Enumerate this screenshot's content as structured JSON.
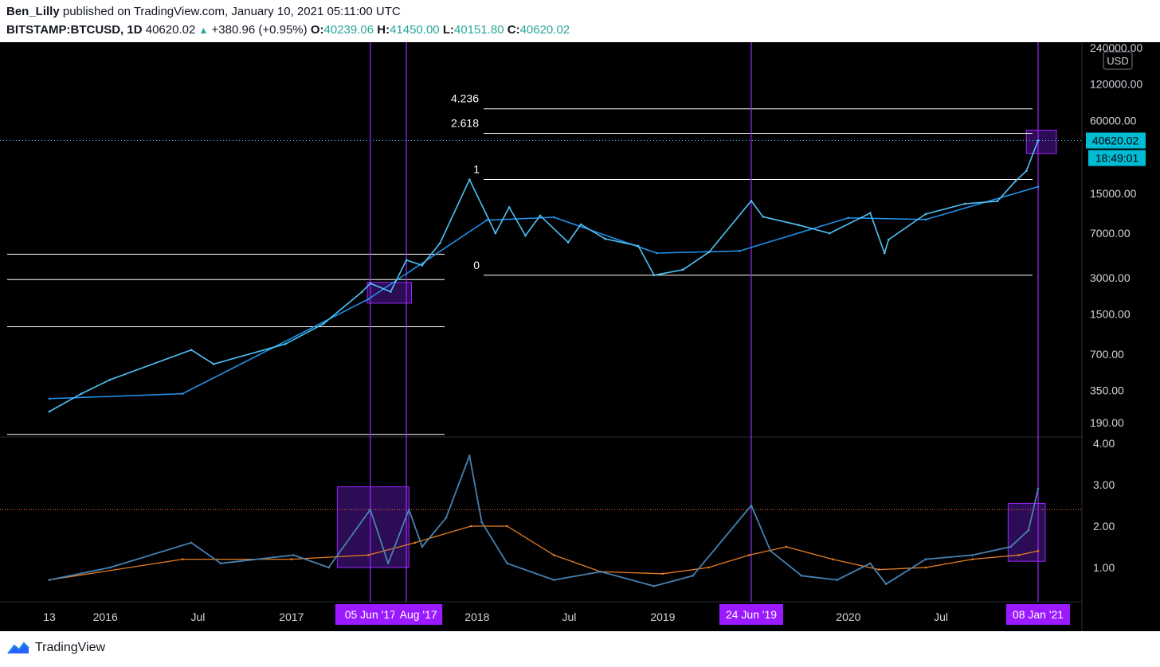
{
  "header": {
    "author": "Ben_Lilly",
    "published_text": "published on TradingView.com, January 10, 2021 05:11:00 UTC",
    "symbol": "BITSTAMP:BTCUSD, 1D",
    "last": "40620.02",
    "change": "+380.96 (+0.95%)",
    "o_label": "O:",
    "o": "40239.06",
    "h_label": "H:",
    "h": "41450.00",
    "l_label": "L:",
    "l": "40151.80",
    "c_label": "C:",
    "c": "40620.02"
  },
  "colors": {
    "price": "#4fc3f7",
    "ma": "#2196f3",
    "oscillator": "#4682b4",
    "osc_ma": "#e67e22",
    "vline": "#9c27ff",
    "box": "#4a148c",
    "level": "#ffffff",
    "tag": "#9c1aff",
    "axis_text": "#d1d4dc"
  },
  "chart_data": [
    {
      "type": "line",
      "title": "",
      "scale": "log",
      "currency": "USD",
      "y_ticks": [
        "240000.00",
        "120000.00",
        "60000.00",
        "15000.00",
        "7000.00",
        "3000.00",
        "1500.00",
        "700.00",
        "350.00",
        "190.00"
      ],
      "price_label": "40620.02",
      "countdown_label": "18:49:01",
      "x_ticks": [
        "13",
        "2016",
        "Jul",
        "2017",
        "Jul",
        "2018",
        "Jul",
        "2019",
        "Jul",
        "2020",
        "Jul"
      ],
      "date_tags": [
        "05 Jun '17",
        "Aug '17",
        "24 Jun '19",
        "08 Jan '21"
      ],
      "fib_labels": [
        "4.236",
        "2.618",
        "1",
        "0"
      ],
      "fib_values": [
        75000,
        47000,
        19500,
        3150
      ],
      "h_levels": [
        4700,
        2900,
        1180,
        152
      ],
      "series": [
        {
          "x": [
            "2015-09-13",
            "2015-11-15",
            "2016-01-10",
            "2016-06-18",
            "2016-08-01",
            "2016-12-20",
            "2017-03-05",
            "2017-05-20",
            "2017-06-05",
            "2017-07-15",
            "2017-08-15",
            "2017-09-15",
            "2017-10-20",
            "2017-12-17",
            "2018-02-06",
            "2018-03-05",
            "2018-04-06",
            "2018-05-05",
            "2018-06-29",
            "2018-07-24",
            "2018-09-10",
            "2018-11-14",
            "2018-12-15",
            "2019-02-10",
            "2019-04-02",
            "2019-06-24",
            "2019-07-17",
            "2019-09-25",
            "2019-11-25",
            "2020-02-13",
            "2020-03-12",
            "2020-03-20",
            "2020-06-01",
            "2020-08-17",
            "2020-10-20",
            "2020-11-25",
            "2020-12-16",
            "2021-01-08"
          ],
          "y": [
            235,
            330,
            430,
            760,
            580,
            850,
            1250,
            2300,
            2700,
            2300,
            4200,
            3800,
            5800,
            19500,
            7000,
            11500,
            6700,
            9800,
            5900,
            8300,
            6300,
            5500,
            3150,
            3500,
            4900,
            13000,
            9600,
            8200,
            7000,
            10300,
            4800,
            6200,
            10100,
            12300,
            12900,
            19000,
            23000,
            41000
          ]
        },
        {
          "x": [
            "2015-09-13",
            "2016-06-01",
            "2017-06-01",
            "2018-01-20",
            "2018-06-01",
            "2018-12-20",
            "2019-06-01",
            "2020-01-01",
            "2020-06-01",
            "2021-01-08"
          ],
          "y": [
            300,
            330,
            2000,
            9000,
            9500,
            4800,
            5000,
            9400,
            9100,
            17000
          ]
        }
      ]
    },
    {
      "type": "line",
      "title": "",
      "y_ticks": [
        "4.00",
        "3.00",
        "2.00",
        "1.00"
      ],
      "threshold": 2.4,
      "series": [
        {
          "x": [
            "2015-09-13",
            "2016-01-10",
            "2016-06-18",
            "2016-08-15",
            "2017-01-05",
            "2017-03-15",
            "2017-06-05",
            "2017-07-10",
            "2017-08-20",
            "2017-09-15",
            "2017-11-01",
            "2017-12-17",
            "2018-01-10",
            "2018-03-01",
            "2018-06-01",
            "2018-09-01",
            "2018-12-15",
            "2019-03-01",
            "2019-06-24",
            "2019-08-01",
            "2019-10-01",
            "2019-12-10",
            "2020-02-13",
            "2020-03-15",
            "2020-06-01",
            "2020-09-01",
            "2020-11-15",
            "2020-12-20",
            "2021-01-08"
          ],
          "y": [
            0.7,
            1.0,
            1.6,
            1.1,
            1.3,
            1.0,
            2.4,
            1.1,
            2.4,
            1.5,
            2.2,
            3.7,
            2.1,
            1.1,
            0.7,
            0.9,
            0.55,
            0.8,
            2.5,
            1.4,
            0.8,
            0.7,
            1.1,
            0.6,
            1.2,
            1.3,
            1.5,
            1.9,
            2.9
          ]
        },
        {
          "x": [
            "2015-09-13",
            "2016-06-01",
            "2017-01-01",
            "2017-06-01",
            "2017-09-01",
            "2017-12-20",
            "2018-03-01",
            "2018-06-01",
            "2018-09-01",
            "2019-01-01",
            "2019-04-01",
            "2019-06-20",
            "2019-09-01",
            "2019-12-01",
            "2020-03-01",
            "2020-06-01",
            "2020-09-01",
            "2020-12-01",
            "2021-01-08"
          ],
          "y": [
            0.7,
            1.2,
            1.2,
            1.3,
            1.6,
            2.0,
            2.0,
            1.3,
            0.9,
            0.85,
            1.0,
            1.3,
            1.5,
            1.2,
            0.95,
            1.0,
            1.2,
            1.3,
            1.4
          ]
        }
      ]
    }
  ],
  "footer": {
    "brand": "TradingView"
  }
}
